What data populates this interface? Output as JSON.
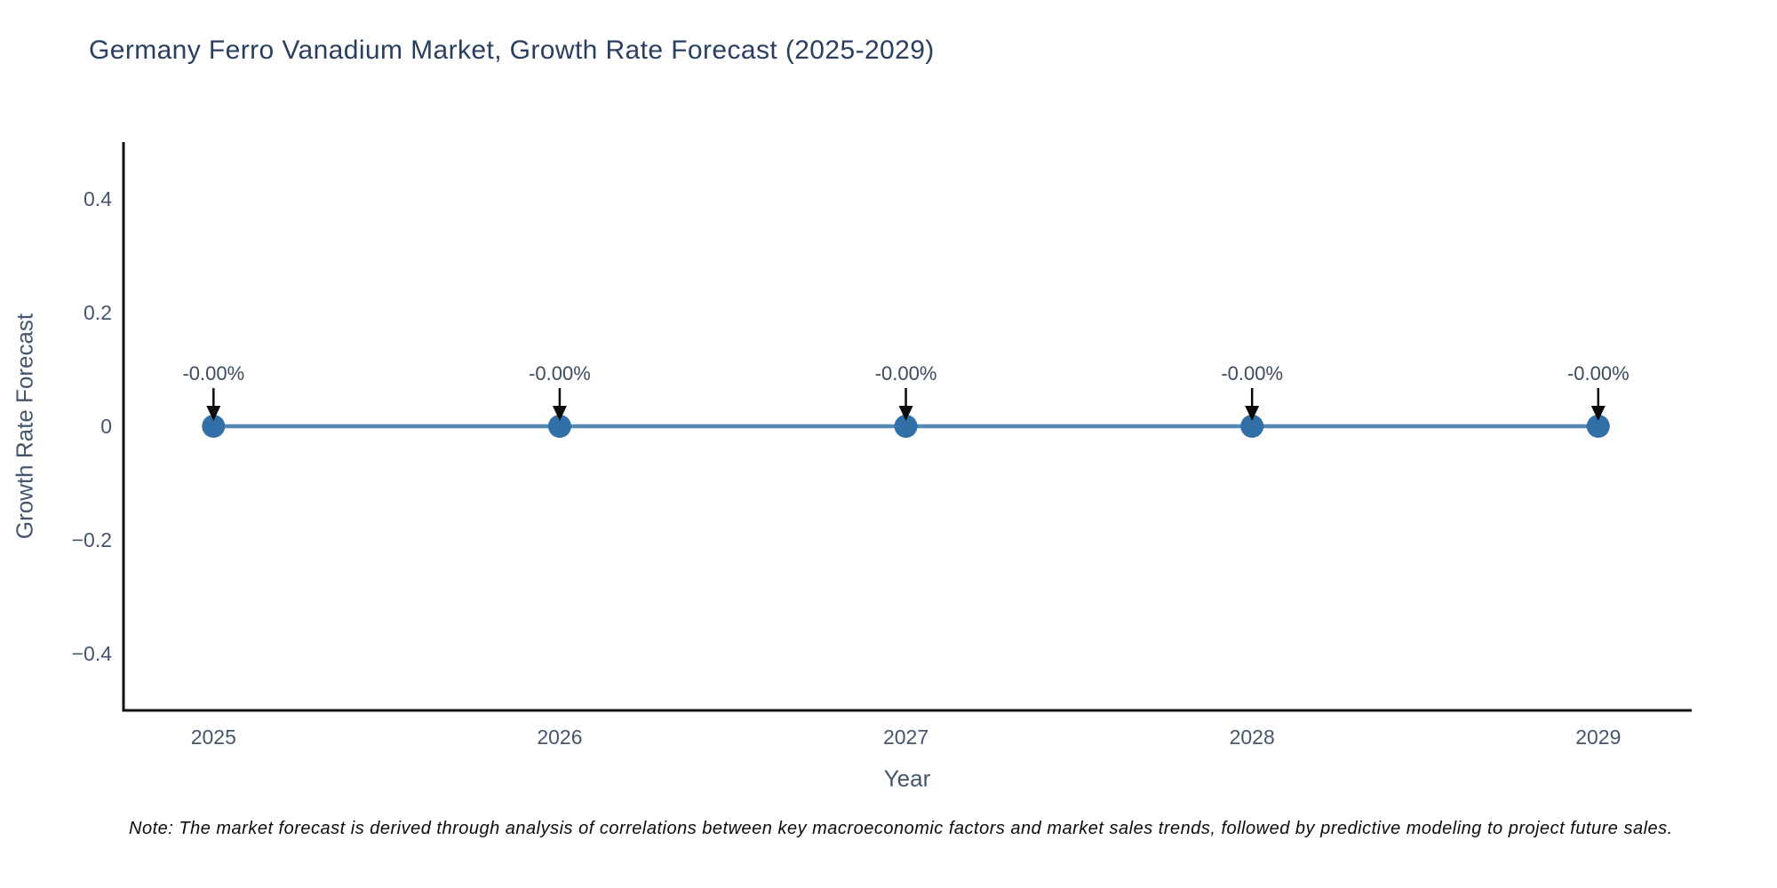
{
  "figure": {
    "title": "Germany Ferro Vanadium Market, Growth Rate Forecast (2025-2029)",
    "note": "Note: The market forecast is derived through analysis of correlations between key macroeconomic factors and market sales trends, followed by predictive modeling to project future sales."
  },
  "chart_data": {
    "type": "line",
    "title": "Germany Ferro Vanadium Market, Growth Rate Forecast (2025-2029)",
    "xlabel": "Year",
    "ylabel": "Growth Rate Forecast",
    "x": [
      2025,
      2026,
      2027,
      2028,
      2029
    ],
    "values": [
      0,
      0,
      0,
      0,
      0
    ],
    "point_labels": [
      "-0.00%",
      "-0.00%",
      "-0.00%",
      "-0.00%",
      "-0.00%"
    ],
    "x_ticks": [
      "2025",
      "2026",
      "2027",
      "2028",
      "2029"
    ],
    "x_tick_values": [
      2025,
      2026,
      2027,
      2028,
      2029
    ],
    "y_ticks": [
      "0.4",
      "0.2",
      "0",
      "−0.2",
      "−0.4"
    ],
    "y_tick_values": [
      0.4,
      0.2,
      0,
      -0.2,
      -0.4
    ],
    "xlim": [
      2024.74,
      2029.27
    ],
    "ylim": [
      -0.5,
      0.5
    ],
    "grid": false,
    "legend": false,
    "annotations_have_arrows": true,
    "colors": {
      "line": "#5588b4",
      "marker": "#336fa7",
      "axis_line": "#111111",
      "title_text": "#2a3f5f",
      "axis_title_text": "#44566b",
      "tick_text": "#44566b",
      "annotation_text": "#3c4b5e",
      "arrow": "#0a0a0a",
      "background": "#ffffff"
    }
  }
}
